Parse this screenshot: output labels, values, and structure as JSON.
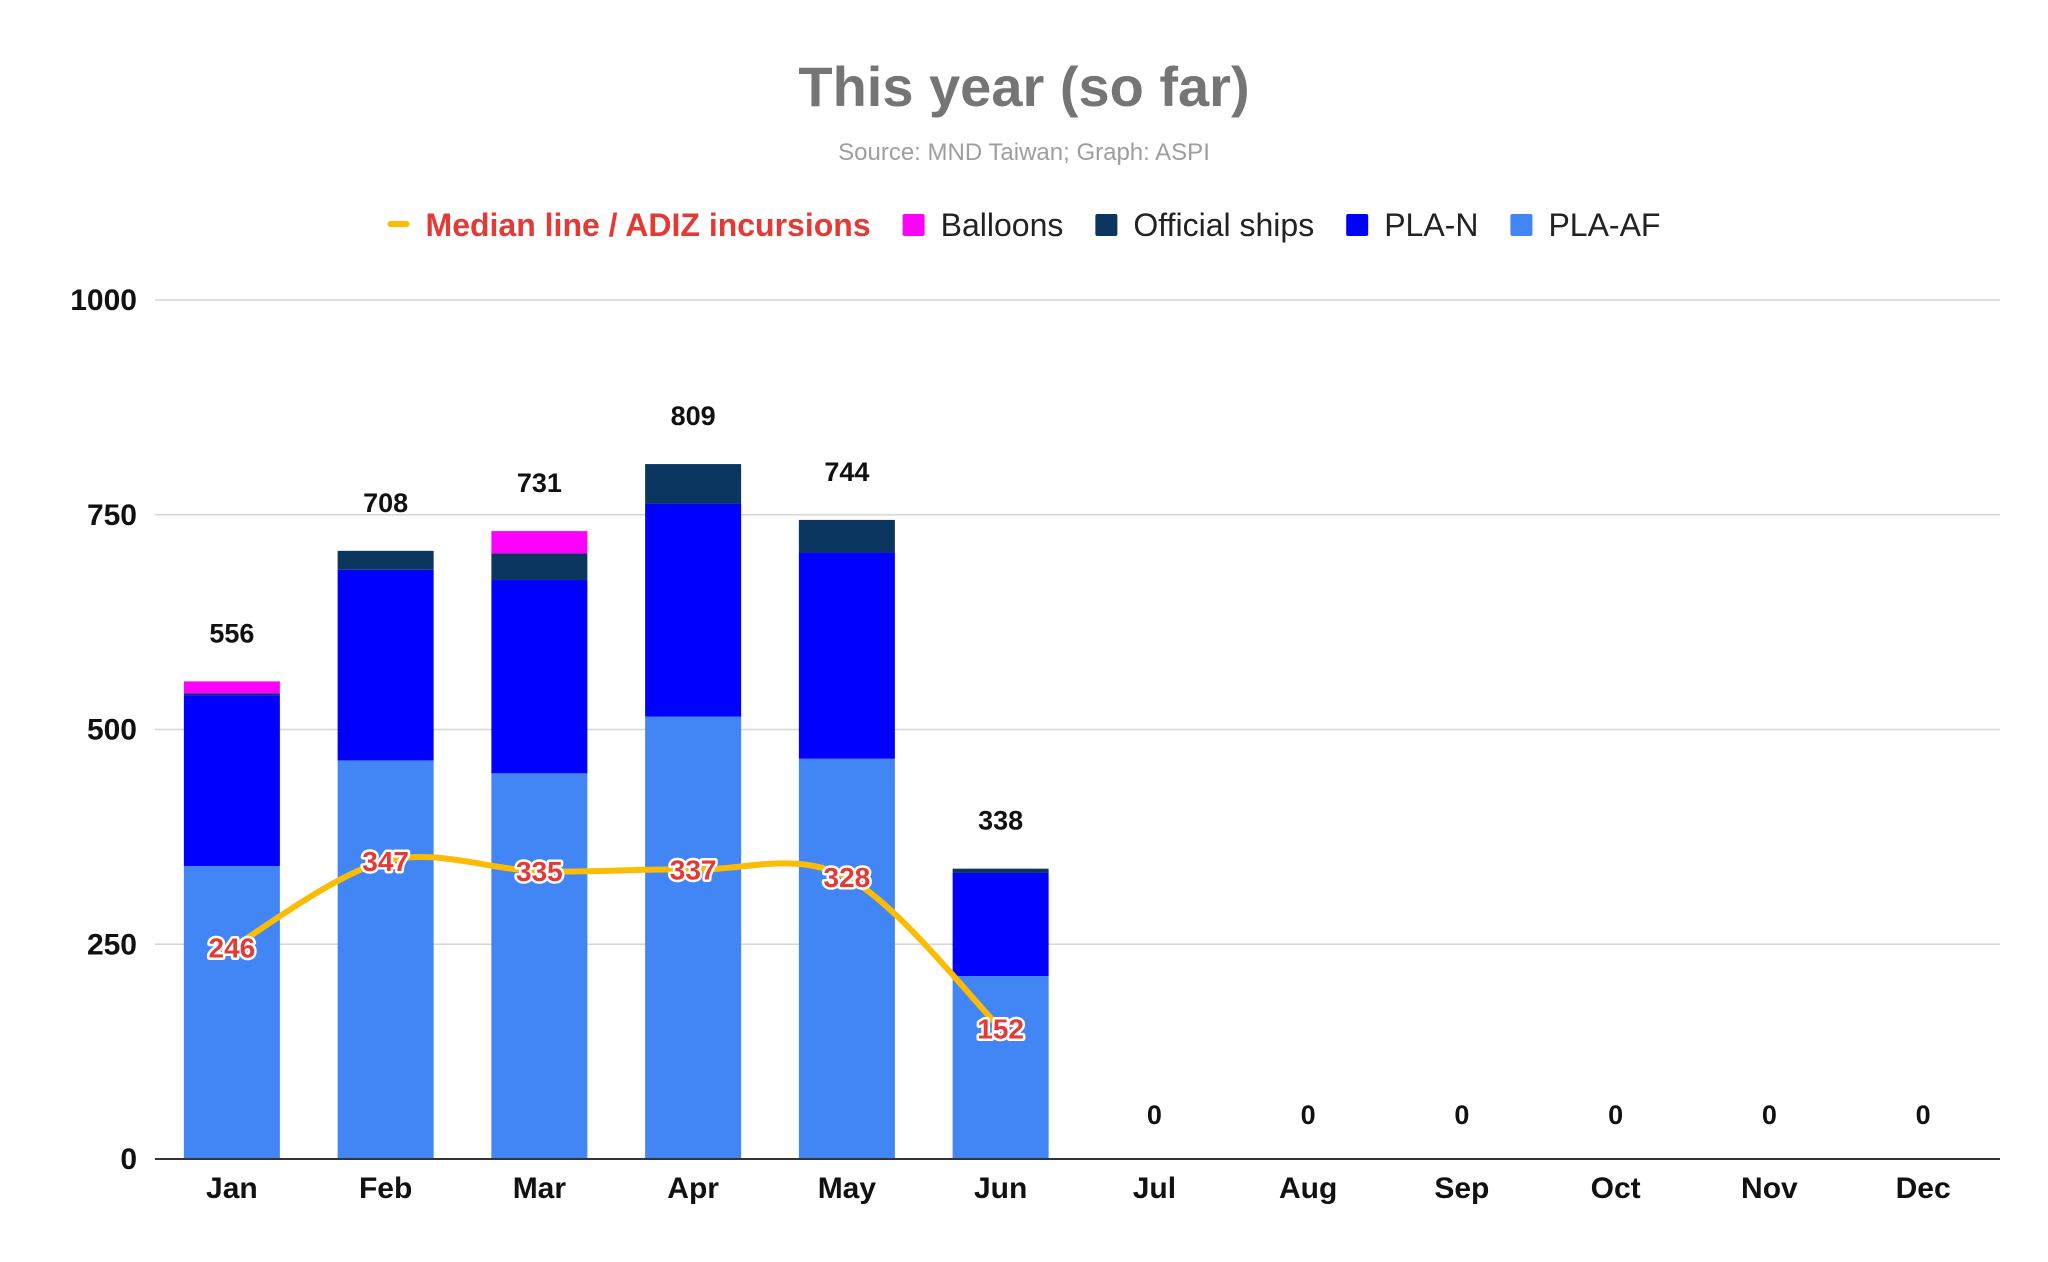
{
  "chart_data": {
    "type": "bar",
    "stacked": true,
    "title": "This year (so far)",
    "subtitle": "Source: MND Taiwan; Graph: ASPI",
    "categories": [
      "Jan",
      "Feb",
      "Mar",
      "Apr",
      "May",
      "Jun",
      "Jul",
      "Aug",
      "Sep",
      "Oct",
      "Nov",
      "Dec"
    ],
    "ylim": [
      0,
      1000
    ],
    "yticks": [
      "0",
      "250",
      "500",
      "750",
      "1000"
    ],
    "grid": true,
    "legend_position": "top",
    "series": [
      {
        "name": "PLA-AF",
        "color": "#4285f4",
        "values": [
          341,
          464,
          449,
          515,
          466,
          213,
          0,
          0,
          0,
          0,
          0,
          0
        ]
      },
      {
        "name": "PLA-N",
        "color": "#0000ff",
        "values": [
          199,
          222,
          225,
          248,
          240,
          120,
          0,
          0,
          0,
          0,
          0,
          0
        ]
      },
      {
        "name": "Official ships",
        "color": "#0b3660",
        "values": [
          2,
          22,
          31,
          46,
          38,
          5,
          0,
          0,
          0,
          0,
          0,
          0
        ]
      },
      {
        "name": "Balloons",
        "color": "#ff00ff",
        "values": [
          14,
          0,
          26,
          0,
          0,
          0,
          0,
          0,
          0,
          0,
          0,
          0
        ]
      }
    ],
    "totals": [
      "556",
      "708",
      "731",
      "809",
      "744",
      "338",
      "0",
      "0",
      "0",
      "0",
      "0",
      "0"
    ],
    "line_series": {
      "name": "Median line / ADIZ incursions",
      "color": "#fbbc04",
      "label_color": "#e53935",
      "values": [
        246,
        347,
        335,
        337,
        328,
        152
      ],
      "labels": [
        "246",
        "347",
        "335",
        "337",
        "328",
        "152"
      ]
    }
  }
}
